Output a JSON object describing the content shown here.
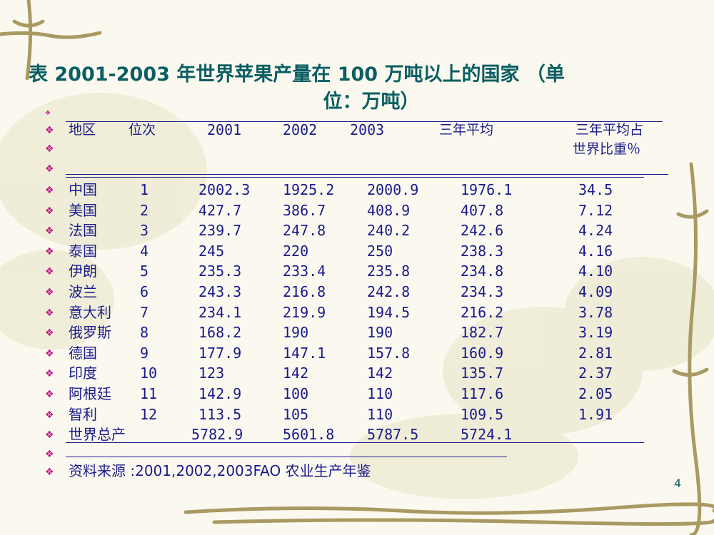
{
  "title": {
    "line1": "表    2001-2003 年世界苹果产量在 100 万吨以上的国家    （单",
    "line2": "位：万吨）"
  },
  "columns": {
    "region": "地区",
    "rank": "位次",
    "y2001": "2001",
    "y2002": "2002",
    "y2003": "2003",
    "avg": "三年平均",
    "share_line1": "三年平均占",
    "share_line2": "世界比重％"
  },
  "rows": [
    {
      "region": "中国",
      "rank": "1",
      "y2001": "2002.3",
      "y2002": "1925.2",
      "y2003": "2000.9",
      "avg": "1976.1",
      "share": "34.5"
    },
    {
      "region": "美国",
      "rank": "2",
      "y2001": "427.7",
      "y2002": "386.7",
      "y2003": "408.9",
      "avg": "407.8",
      "share": "7.12"
    },
    {
      "region": "法国",
      "rank": "3",
      "y2001": "239.7",
      "y2002": "247.8",
      "y2003": "240.2",
      "avg": "242.6",
      "share": "4.24"
    },
    {
      "region": "泰国",
      "rank": "4",
      "y2001": "245",
      "y2002": "220",
      "y2003": "250",
      "avg": "238.3",
      "share": "4.16"
    },
    {
      "region": "伊朗",
      "rank": "5",
      "y2001": "235.3",
      "y2002": "233.4",
      "y2003": "235.8",
      "avg": "234.8",
      "share": "4.10"
    },
    {
      "region": "波兰",
      "rank": "6",
      "y2001": "243.3",
      "y2002": "216.8",
      "y2003": "242.8",
      "avg": "234.3",
      "share": "4.09"
    },
    {
      "region": "意大利",
      "rank": "7",
      "y2001": "234.1",
      "y2002": "219.9",
      "y2003": "194.5",
      "avg": "216.2",
      "share": "3.78"
    },
    {
      "region": "俄罗斯",
      "rank": "8",
      "y2001": "168.2",
      "y2002": "190",
      "y2003": "190",
      "avg": "182.7",
      "share": "3.19"
    },
    {
      "region": "德国",
      "rank": "9",
      "y2001": "177.9",
      "y2002": "147.1",
      "y2003": "157.8",
      "avg": "160.9",
      "share": "2.81"
    },
    {
      "region": "印度",
      "rank": "10",
      "y2001": "123",
      "y2002": "142",
      "y2003": "142",
      "avg": "135.7",
      "share": "2.37"
    },
    {
      "region": "阿根廷",
      "rank": "11",
      "y2001": "142.9",
      "y2002": "100",
      "y2003": "110",
      "avg": "117.6",
      "share": "2.05"
    },
    {
      "region": "智利",
      "rank": "12",
      "y2001": "113.5",
      "y2002": "105",
      "y2003": "110",
      "avg": "109.5",
      "share": "1.91"
    }
  ],
  "total": {
    "label": "世界总产",
    "y2001": "5782.9",
    "y2002": "5601.8",
    "y2003": "5787.5",
    "avg": "5724.1"
  },
  "source": "资料来源 :2001,2002,2003FAO 农业生产年鉴",
  "bullet_glyph": "❖",
  "page_number": "4",
  "colors": {
    "title": "#0b5e63",
    "table_text": "#1a1a8c",
    "bullet": "#c0188f",
    "background": "#fbf9ef"
  }
}
